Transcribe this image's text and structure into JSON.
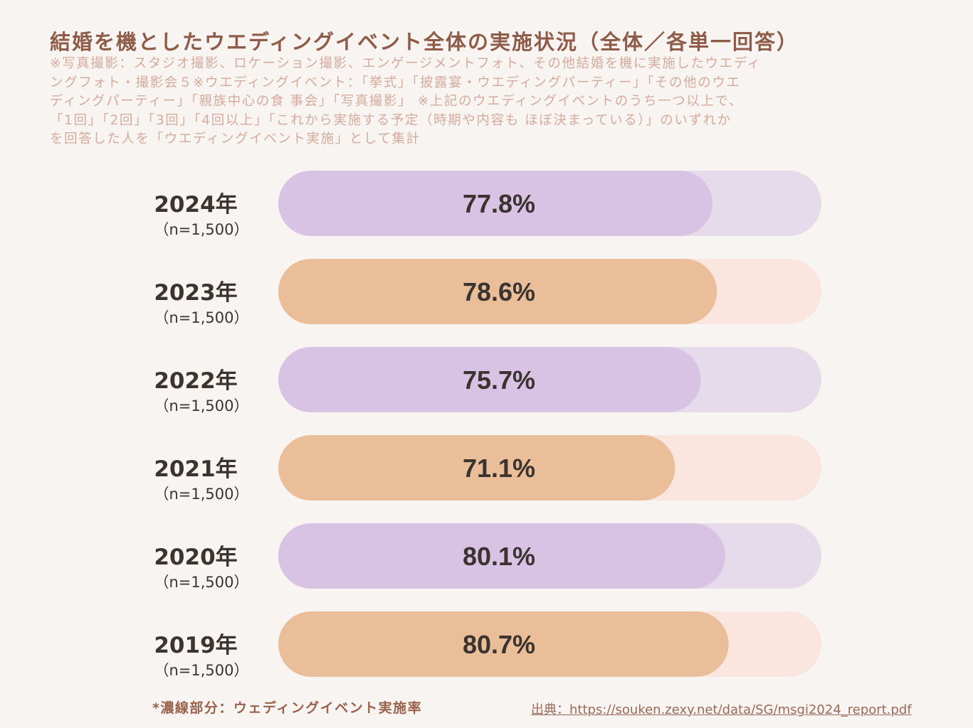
{
  "header": {
    "title": "結婚を機としたウエディングイベント全体の実施状況（全体／各単一回答）",
    "note_lines": [
      " ※写真撮影：スタジオ撮影、ロケーション撮影、エンゲージメントフォト、その他結婚を機に実施したウエディ",
      "ングフォト・撮影会５※ウエディングイベント：「挙式」「披露宴・ウエディングパーティー」「その他のウエ",
      "ディングパーティー」「親族中心の食 事会」「写真撮影」 ※上記のウエディングイベントのうち一つ以上で、",
      " 「1回」「2回」「3回」「4回以上」「これから実施する予定（時期や内容も ほぼ決まっている）」のいずれか",
      "を回答した人を「ウエディングイベント実施」として集計"
    ]
  },
  "colors": {
    "purple_fill": "#d8c3e4",
    "purple_track": "#e6dbea",
    "orange_fill": "#ebbe9a",
    "orange_track": "#fae5df",
    "title": "#8e5c48",
    "note": "#d4ab9c"
  },
  "chart_data": {
    "type": "bar",
    "orientation": "horizontal",
    "title": "結婚を機としたウエディングイベント全体の実施状況（全体／各単一回答）",
    "categories": [
      "2024年",
      "2023年",
      "2022年",
      "2021年",
      "2020年",
      "2019年"
    ],
    "sample_sizes": [
      "（n=1,500）",
      "（n=1,500）",
      "（n=1,500）",
      "（n=1,500）",
      "（n=1,500）",
      "（n=1,500）"
    ],
    "series": [
      {
        "name": "ウエディングイベント実施率",
        "values": [
          77.8,
          78.6,
          75.7,
          71.1,
          80.1,
          80.7
        ]
      }
    ],
    "value_labels": [
      "77.8%",
      "78.6%",
      "75.7%",
      "71.1%",
      "80.1%",
      "80.7%"
    ],
    "bar_colors": [
      "purple",
      "orange",
      "purple",
      "orange",
      "purple",
      "orange"
    ],
    "xlim": [
      0,
      100
    ],
    "xlabel": "",
    "ylabel": "",
    "grid": false,
    "legend": "none"
  },
  "footer": {
    "legend_note": "*濃線部分：ウェディングイベント実施率",
    "source": "出典：https://souken.zexy.net/data/SG/msgi2024_report.pdf"
  }
}
